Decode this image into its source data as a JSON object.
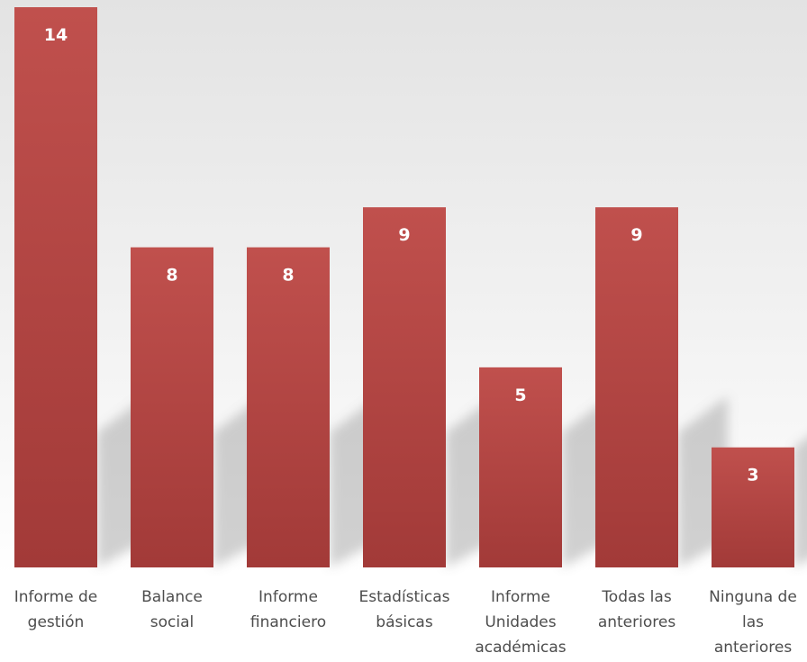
{
  "chart_data": {
    "type": "bar",
    "categories": [
      [
        "Informe de",
        "gestión"
      ],
      [
        "Balance",
        "social"
      ],
      [
        "Informe",
        "financiero"
      ],
      [
        "Estadísticas",
        "básicas"
      ],
      [
        "Informe",
        "Unidades",
        "académicas"
      ],
      [
        "Todas las",
        "anteriores"
      ],
      [
        "Ninguna de",
        "las",
        "anteriores"
      ]
    ],
    "values": [
      14,
      8,
      8,
      9,
      5,
      9,
      3
    ],
    "title": "",
    "xlabel": "",
    "ylabel": "",
    "ylim": [
      0,
      14
    ],
    "grid": false,
    "legend": "none",
    "data_labels": "inside-top",
    "colors": {
      "bar_light": "#c0504d",
      "bar_dark": "#a23a38",
      "label": "#ffffff",
      "category_text": "#4d4d4d",
      "background_top": "#e3e3e3",
      "background_bottom": "#ffffff"
    }
  }
}
